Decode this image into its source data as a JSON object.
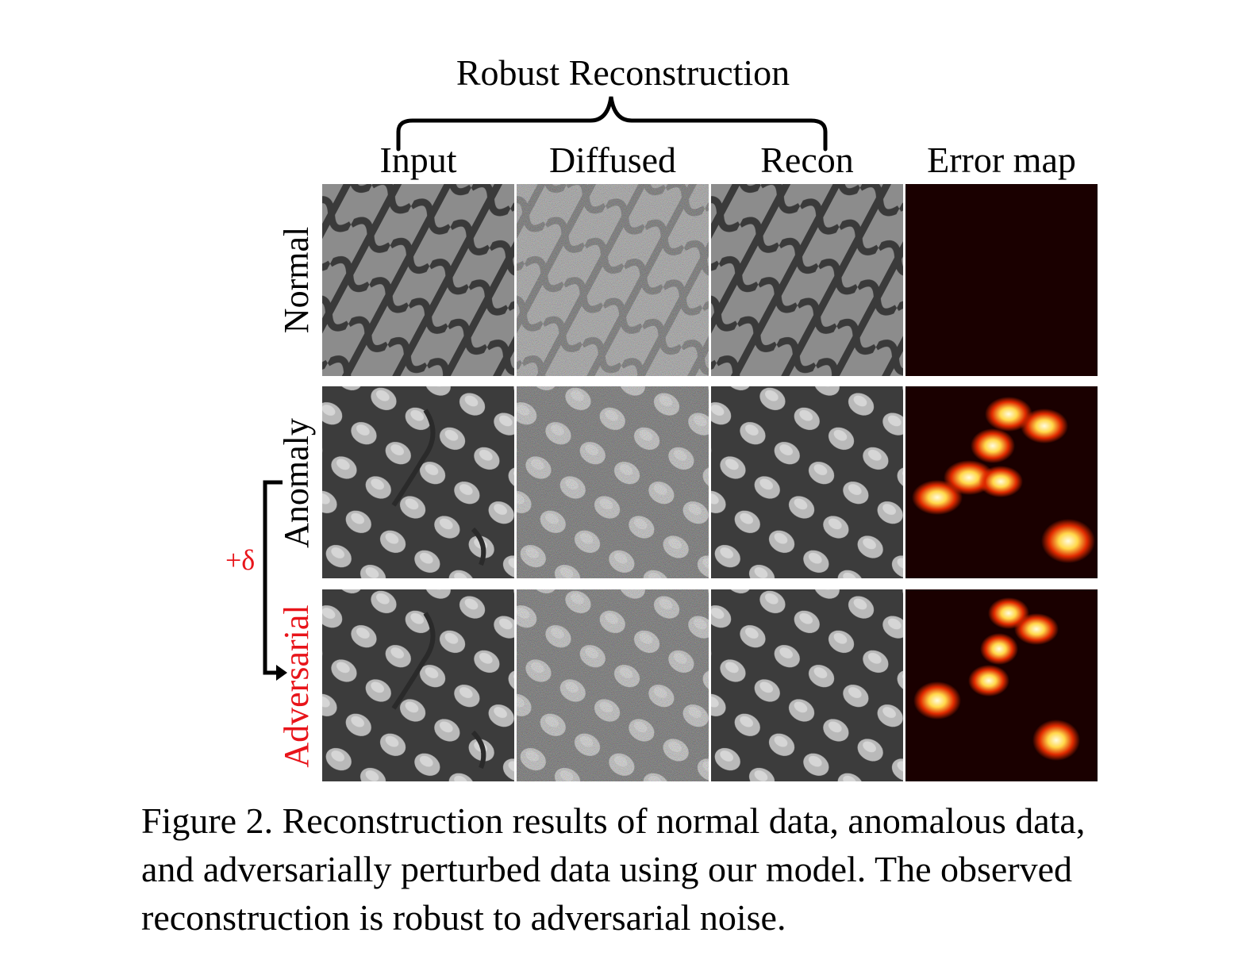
{
  "figure": {
    "header": "Robust Reconstruction",
    "columns": [
      "Input",
      "Diffused",
      "Recon",
      "Error map"
    ],
    "rows": [
      "Normal",
      "Anomaly",
      "Adversarial"
    ],
    "perturbation_label": "+δ",
    "caption_lines": [
      "Figure 2. Reconstruction results of normal data, anomalous data,",
      "and adversarially perturbed data using our model.  The observed",
      "reconstruction is robust to adversarial noise."
    ]
  },
  "colors": {
    "text": "#000000",
    "adversarial_red": "#e8141a",
    "grid_background": "#7a7a7a",
    "error_map_background": "#1a0000",
    "heat_hot": "#ffd84a"
  }
}
